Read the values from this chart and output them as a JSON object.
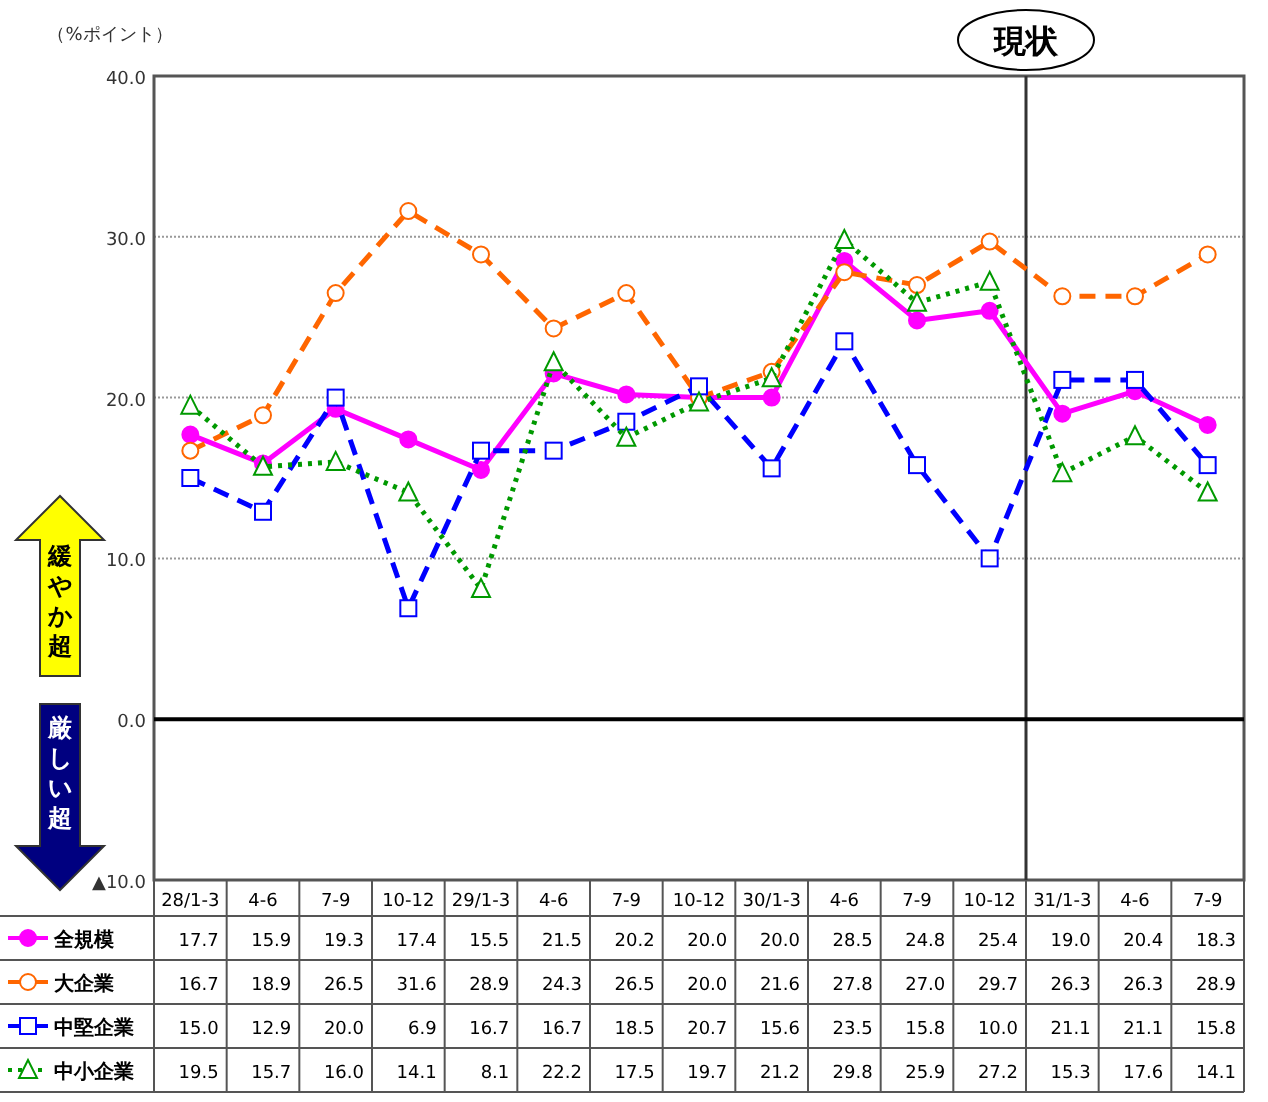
{
  "chart_data": {
    "type": "line",
    "ylabel": "（%ポイント）",
    "categories": [
      "28/1-3",
      "4-6",
      "7-9",
      "10-12",
      "29/1-3",
      "4-6",
      "7-9",
      "10-12",
      "30/1-3",
      "4-6",
      "7-9",
      "10-12",
      "31/1-3",
      "4-6",
      "7-9"
    ],
    "series": [
      {
        "name": "全規模",
        "color": "#ff00ff",
        "marker": "circle",
        "line_style": "solid",
        "values": [
          17.7,
          15.9,
          19.3,
          17.4,
          15.5,
          21.5,
          20.2,
          20.0,
          20.0,
          28.5,
          24.8,
          25.4,
          19.0,
          20.4,
          18.3
        ],
        "value_labels": [
          "17.7",
          "15.9",
          "19.3",
          "17.4",
          "15.5",
          "21.5",
          "20.2",
          "20.0",
          "20.0",
          "28.5",
          "24.8",
          "25.4",
          "19.0",
          "20.4",
          "18.3"
        ]
      },
      {
        "name": "大企業",
        "color": "#ff6600",
        "marker": "circle",
        "line_style": "dashed",
        "values": [
          16.7,
          18.9,
          26.5,
          31.6,
          28.9,
          24.3,
          26.5,
          20.0,
          21.6,
          27.8,
          27.0,
          29.7,
          26.3,
          26.3,
          28.9
        ],
        "value_labels": [
          "16.7",
          "18.9",
          "26.5",
          "31.6",
          "28.9",
          "24.3",
          "26.5",
          "20.0",
          "21.6",
          "27.8",
          "27.0",
          "29.7",
          "26.3",
          "26.3",
          "28.9"
        ]
      },
      {
        "name": "中堅企業",
        "color": "#0000ff",
        "marker": "square",
        "line_style": "dashed",
        "values": [
          15.0,
          12.9,
          20.0,
          6.9,
          16.7,
          16.7,
          18.5,
          20.7,
          15.6,
          23.5,
          15.8,
          10.0,
          21.1,
          21.1,
          15.8
        ],
        "value_labels": [
          "15.0",
          "12.9",
          "20.0",
          "6.9",
          "16.7",
          "16.7",
          "18.5",
          "20.7",
          "15.6",
          "23.5",
          "15.8",
          "10.0",
          "21.1",
          "21.1",
          "15.8"
        ]
      },
      {
        "name": "中小企業",
        "color": "#009900",
        "marker": "triangle",
        "line_style": "dotted",
        "values": [
          19.5,
          15.7,
          16.0,
          14.1,
          8.1,
          22.2,
          17.5,
          19.7,
          21.2,
          29.8,
          25.9,
          27.2,
          15.3,
          17.6,
          14.1
        ],
        "value_labels": [
          "19.5",
          "15.7",
          "16.0",
          "14.1",
          "8.1",
          "22.2",
          "17.5",
          "19.7",
          "21.2",
          "29.8",
          "25.9",
          "27.2",
          "15.3",
          "17.6",
          "14.1"
        ]
      }
    ],
    "ylim": [
      -10,
      40
    ],
    "yticks": [
      {
        "value": 40,
        "label": "40.0"
      },
      {
        "value": 30,
        "label": "30.0"
      },
      {
        "value": 20,
        "label": "20.0"
      },
      {
        "value": 10,
        "label": "10.0"
      },
      {
        "value": 0,
        "label": "0.0"
      },
      {
        "value": -10,
        "label": "▲10.0"
      }
    ],
    "grid": "y",
    "legend": "bottom",
    "ref_lines": [
      {
        "axis": "x",
        "value": "31/1-3",
        "label": "現状"
      },
      {
        "axis": "y",
        "value": 0
      }
    ],
    "annotations": [
      "緩やか超",
      "厳しい超"
    ]
  }
}
